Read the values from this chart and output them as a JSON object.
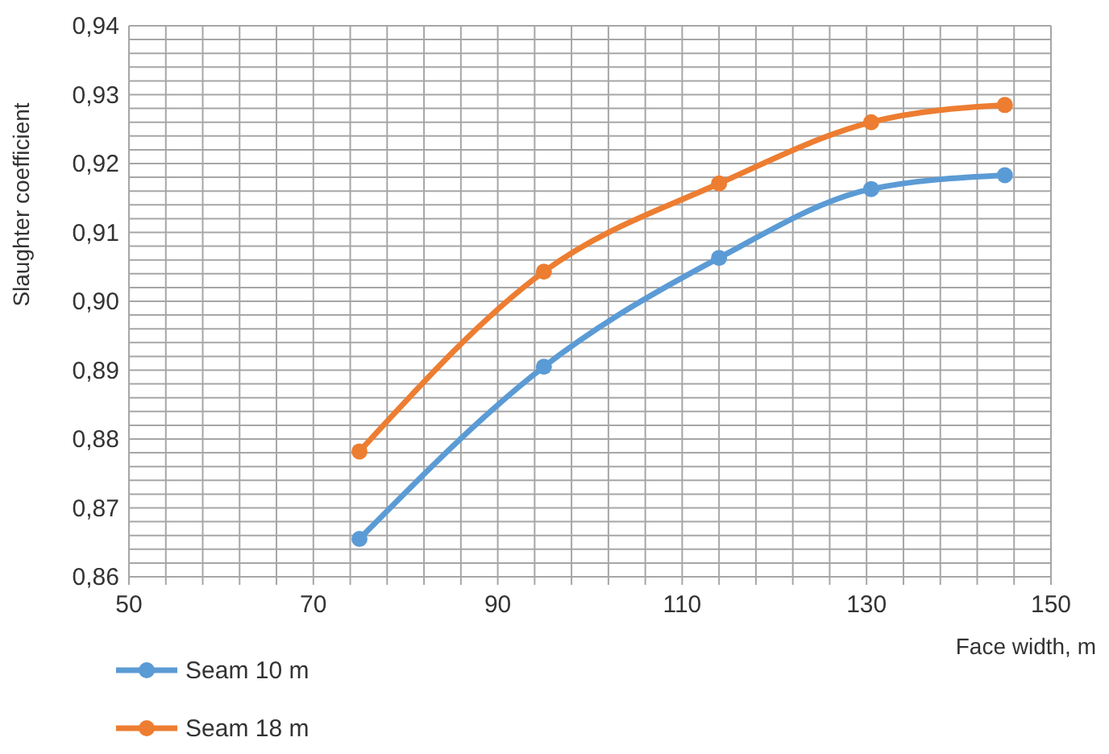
{
  "chart_data": {
    "type": "line",
    "xlabel": "Face width, m",
    "ylabel": "Slaughter coefficient",
    "x": [
      75,
      95,
      114,
      130.5,
      145
    ],
    "series": [
      {
        "name": "Seam 10 m",
        "color": "#5b9bd5",
        "values": [
          0.8655,
          0.8905,
          0.9063,
          0.9163,
          0.9183
        ]
      },
      {
        "name": "Seam 18 m",
        "color": "#ed7d31",
        "values": [
          0.8782,
          0.9043,
          0.9171,
          0.926,
          0.9285
        ]
      }
    ],
    "xlim": [
      50,
      150
    ],
    "xticks": [
      50,
      {
        "value": 54,
        "label": null
      },
      {
        "value": 58,
        "label": null
      },
      {
        "value": 62,
        "label": null
      },
      {
        "value": 66,
        "label": null
      },
      70,
      {
        "value": 74,
        "label": null
      },
      {
        "value": 78,
        "label": null
      },
      {
        "value": 82,
        "label": null
      },
      {
        "value": 86,
        "label": null
      },
      90,
      {
        "value": 94,
        "label": null
      },
      {
        "value": 98,
        "label": null
      },
      {
        "value": 102,
        "label": null
      },
      {
        "value": 106,
        "label": null
      },
      110,
      {
        "value": 114,
        "label": null
      },
      {
        "value": 118,
        "label": null
      },
      {
        "value": 122,
        "label": null
      },
      {
        "value": 126,
        "label": null
      },
      130,
      {
        "value": 134,
        "label": null
      },
      {
        "value": 138,
        "label": null
      },
      {
        "value": 142,
        "label": null
      },
      {
        "value": 146,
        "label": null
      },
      150
    ],
    "ylim": [
      0.86,
      0.94
    ],
    "yticks": [
      {
        "value": 0.86,
        "label": "0,86"
      },
      {
        "value": 0.862,
        "label": null
      },
      {
        "value": 0.864,
        "label": null
      },
      {
        "value": 0.866,
        "label": null
      },
      {
        "value": 0.868,
        "label": null
      },
      {
        "value": 0.87,
        "label": "0,87"
      },
      {
        "value": 0.872,
        "label": null
      },
      {
        "value": 0.874,
        "label": null
      },
      {
        "value": 0.876,
        "label": null
      },
      {
        "value": 0.878,
        "label": null
      },
      {
        "value": 0.88,
        "label": "0,88"
      },
      {
        "value": 0.882,
        "label": null
      },
      {
        "value": 0.884,
        "label": null
      },
      {
        "value": 0.886,
        "label": null
      },
      {
        "value": 0.888,
        "label": null
      },
      {
        "value": 0.89,
        "label": "0,89"
      },
      {
        "value": 0.892,
        "label": null
      },
      {
        "value": 0.894,
        "label": null
      },
      {
        "value": 0.896,
        "label": null
      },
      {
        "value": 0.898,
        "label": null
      },
      {
        "value": 0.9,
        "label": "0,90"
      },
      {
        "value": 0.902,
        "label": null
      },
      {
        "value": 0.904,
        "label": null
      },
      {
        "value": 0.906,
        "label": null
      },
      {
        "value": 0.908,
        "label": null
      },
      {
        "value": 0.91,
        "label": "0,91"
      },
      {
        "value": 0.912,
        "label": null
      },
      {
        "value": 0.914,
        "label": null
      },
      {
        "value": 0.916,
        "label": null
      },
      {
        "value": 0.918,
        "label": null
      },
      {
        "value": 0.92,
        "label": "0,92"
      },
      {
        "value": 0.922,
        "label": null
      },
      {
        "value": 0.924,
        "label": null
      },
      {
        "value": 0.926,
        "label": null
      },
      {
        "value": 0.928,
        "label": null
      },
      {
        "value": 0.93,
        "label": "0,93"
      },
      {
        "value": 0.932,
        "label": null
      },
      {
        "value": 0.934,
        "label": null
      },
      {
        "value": 0.936,
        "label": null
      },
      {
        "value": 0.938,
        "label": null
      },
      {
        "value": 0.94,
        "label": "0,94"
      }
    ],
    "grid": true,
    "legend": "bottom left",
    "marker": "circle",
    "line_style": "solid"
  }
}
